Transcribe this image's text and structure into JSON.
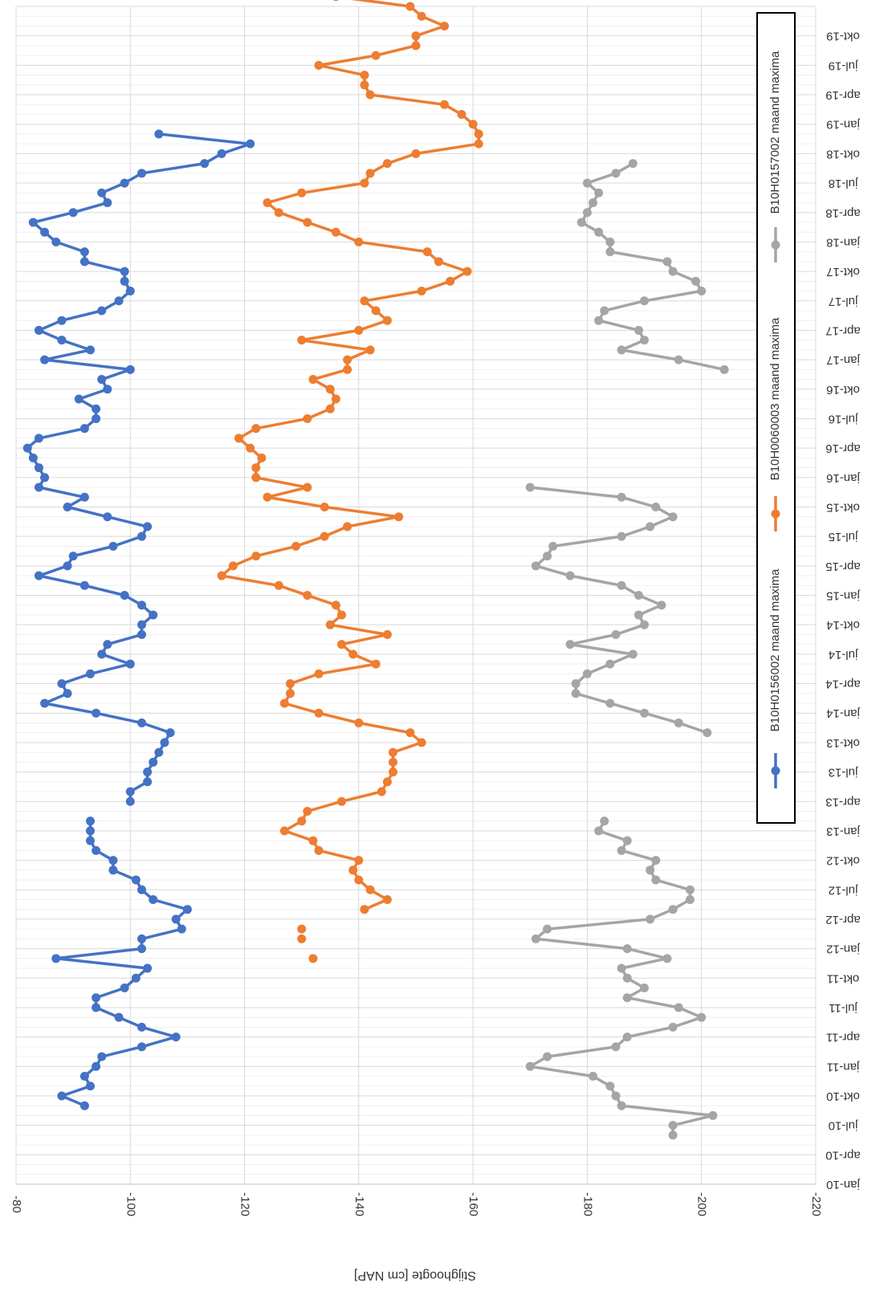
{
  "chart_data": {
    "type": "line",
    "title": "",
    "xlabel": "",
    "ylabel": "Stijghoogte [cm NAP]",
    "y_ticks": [
      -80,
      -100,
      -120,
      -140,
      -160,
      -180,
      -200,
      -220
    ],
    "ylim": [
      -80,
      -220
    ],
    "x_tick_labels": [
      "jan-10",
      "apr-10",
      "jul-10",
      "okt-10",
      "jan-11",
      "apr-11",
      "jul-11",
      "okt-11",
      "jan-12",
      "apr-12",
      "jul-12",
      "okt-12",
      "jan-13",
      "apr-13",
      "jul-13",
      "okt-13",
      "jan-14",
      "apr-14",
      "jul-14",
      "okt-14",
      "jan-15",
      "apr-15",
      "jul-15",
      "okt-15",
      "jan-16",
      "apr-16",
      "jul-16",
      "okt-16",
      "jan-17",
      "apr-17",
      "jul-17",
      "okt-17",
      "jan-18",
      "apr-18",
      "jul-18",
      "okt-18",
      "jan-19",
      "apr-19",
      "jul-19",
      "okt-19"
    ],
    "x_unit": "month index from jan-10",
    "grid": true,
    "legend_position": "right",
    "orientation": "rotated 90 degrees clockwise",
    "series": [
      {
        "name": "B10H0156002 maand maxima",
        "color": "#4472C4",
        "points": [
          [
            8,
            -92
          ],
          [
            9,
            -88
          ],
          [
            10,
            -93
          ],
          [
            11,
            -92
          ],
          [
            12,
            -94
          ],
          [
            13,
            -95
          ],
          [
            14,
            -102
          ],
          [
            15,
            -108
          ],
          [
            16,
            -102
          ],
          [
            17,
            -98
          ],
          [
            18,
            -94
          ],
          [
            19,
            -94
          ],
          [
            20,
            -99
          ],
          [
            21,
            -101
          ],
          [
            22,
            -103
          ],
          [
            23,
            -87
          ],
          [
            24,
            -102
          ],
          [
            25,
            -102
          ],
          [
            26,
            -109
          ],
          [
            27,
            -108
          ],
          [
            28,
            -110
          ],
          [
            29,
            -104
          ],
          [
            30,
            -102
          ],
          [
            31,
            -101
          ],
          [
            32,
            -97
          ],
          [
            33,
            -97
          ],
          [
            34,
            -94
          ],
          [
            35,
            -93
          ],
          [
            36,
            -93
          ],
          [
            37,
            -93
          ],
          [
            39,
            -100
          ],
          [
            40,
            -100
          ],
          [
            41,
            -103
          ],
          [
            42,
            -103
          ],
          [
            43,
            -104
          ],
          [
            44,
            -105
          ],
          [
            45,
            -106
          ],
          [
            46,
            -107
          ],
          [
            47,
            -102
          ],
          [
            48,
            -94
          ],
          [
            49,
            -85
          ],
          [
            50,
            -89
          ],
          [
            51,
            -88
          ],
          [
            52,
            -93
          ],
          [
            53,
            -100
          ],
          [
            54,
            -95
          ],
          [
            55,
            -96
          ],
          [
            56,
            -102
          ],
          [
            57,
            -102
          ],
          [
            58,
            -104
          ],
          [
            59,
            -102
          ],
          [
            60,
            -99
          ],
          [
            61,
            -92
          ],
          [
            62,
            -84
          ],
          [
            63,
            -89
          ],
          [
            64,
            -90
          ],
          [
            65,
            -97
          ],
          [
            66,
            -102
          ],
          [
            67,
            -103
          ],
          [
            68,
            -96
          ],
          [
            69,
            -89
          ],
          [
            70,
            -92
          ],
          [
            71,
            -84
          ],
          [
            72,
            -85
          ],
          [
            73,
            -84
          ],
          [
            74,
            -83
          ],
          [
            75,
            -82
          ],
          [
            76,
            -84
          ],
          [
            77,
            -92
          ],
          [
            78,
            -94
          ],
          [
            79,
            -94
          ],
          [
            80,
            -91
          ],
          [
            81,
            -96
          ],
          [
            82,
            -95
          ],
          [
            83,
            -100
          ],
          [
            84,
            -85
          ],
          [
            85,
            -93
          ],
          [
            86,
            -88
          ],
          [
            87,
            -84
          ],
          [
            88,
            -88
          ],
          [
            89,
            -95
          ],
          [
            90,
            -98
          ],
          [
            91,
            -100
          ],
          [
            92,
            -99
          ],
          [
            93,
            -99
          ],
          [
            94,
            -92
          ],
          [
            95,
            -92
          ],
          [
            96,
            -87
          ],
          [
            97,
            -85
          ],
          [
            98,
            -83
          ],
          [
            99,
            -90
          ],
          [
            100,
            -96
          ],
          [
            101,
            -95
          ],
          [
            102,
            -99
          ],
          [
            103,
            -102
          ],
          [
            104,
            -113
          ],
          [
            105,
            -116
          ],
          [
            106,
            -121
          ],
          [
            107,
            -105
          ]
        ]
      },
      {
        "name": "B10H0060003 maand maxima",
        "color": "#ED7D31",
        "points": [
          [
            28,
            -141
          ],
          [
            29,
            -145
          ],
          [
            30,
            -142
          ],
          [
            31,
            -140
          ],
          [
            32,
            -139
          ],
          [
            33,
            -140
          ],
          [
            34,
            -133
          ],
          [
            35,
            -132
          ],
          [
            36,
            -127
          ],
          [
            37,
            -130
          ],
          [
            38,
            -131
          ],
          [
            39,
            -137
          ],
          [
            40,
            -144
          ],
          [
            41,
            -145
          ],
          [
            42,
            -146
          ],
          [
            43,
            -146
          ],
          [
            44,
            -146
          ],
          [
            45,
            -151
          ],
          [
            46,
            -149
          ],
          [
            47,
            -140
          ],
          [
            48,
            -133
          ],
          [
            49,
            -127
          ],
          [
            50,
            -128
          ],
          [
            51,
            -128
          ],
          [
            52,
            -133
          ],
          [
            53,
            -143
          ],
          [
            54,
            -139
          ],
          [
            55,
            -137
          ],
          [
            56,
            -145
          ],
          [
            57,
            -135
          ],
          [
            58,
            -137
          ],
          [
            59,
            -136
          ],
          [
            60,
            -131
          ],
          [
            61,
            -126
          ],
          [
            62,
            -116
          ],
          [
            63,
            -118
          ],
          [
            64,
            -122
          ],
          [
            65,
            -129
          ],
          [
            66,
            -134
          ],
          [
            67,
            -138
          ],
          [
            68,
            -147
          ],
          [
            69,
            -134
          ],
          [
            70,
            -124
          ],
          [
            71,
            -131
          ],
          [
            72,
            -122
          ],
          [
            73,
            -122
          ],
          [
            74,
            -123
          ],
          [
            75,
            -121
          ],
          [
            76,
            -119
          ],
          [
            77,
            -122
          ],
          [
            78,
            -131
          ],
          [
            79,
            -135
          ],
          [
            80,
            -136
          ],
          [
            81,
            -135
          ],
          [
            82,
            -132
          ],
          [
            83,
            -138
          ],
          [
            84,
            -138
          ],
          [
            85,
            -142
          ],
          [
            86,
            -130
          ],
          [
            87,
            -140
          ],
          [
            88,
            -145
          ],
          [
            89,
            -143
          ],
          [
            90,
            -141
          ],
          [
            91,
            -151
          ],
          [
            92,
            -156
          ],
          [
            93,
            -159
          ],
          [
            94,
            -154
          ],
          [
            95,
            -152
          ],
          [
            96,
            -140
          ],
          [
            97,
            -136
          ],
          [
            98,
            -131
          ],
          [
            99,
            -126
          ],
          [
            100,
            -124
          ],
          [
            101,
            -130
          ],
          [
            102,
            -141
          ],
          [
            103,
            -142
          ],
          [
            104,
            -145
          ],
          [
            105,
            -150
          ],
          [
            106,
            -161
          ],
          [
            107,
            -161
          ],
          [
            108,
            -160
          ],
          [
            109,
            -158
          ],
          [
            110,
            -155
          ],
          [
            111,
            -142
          ],
          [
            112,
            -141
          ],
          [
            113,
            -141
          ],
          [
            114,
            -133
          ],
          [
            115,
            -143
          ],
          [
            116,
            -150
          ],
          [
            117,
            -150
          ],
          [
            118,
            -155
          ],
          [
            119,
            -151
          ],
          [
            120,
            -149
          ],
          [
            121,
            -136
          ],
          [
            122,
            -136
          ],
          [
            123,
            -135
          ]
        ],
        "isolated_points": [
          [
            23,
            -132
          ],
          [
            25,
            -130
          ],
          [
            26,
            -130
          ]
        ]
      },
      {
        "name": "B10H0157002 maand maxima",
        "color": "#A5A5A5",
        "points": [
          [
            5,
            -195
          ],
          [
            6,
            -195
          ],
          [
            7,
            -202
          ],
          [
            8,
            -186
          ],
          [
            9,
            -185
          ],
          [
            10,
            -184
          ],
          [
            11,
            -181
          ],
          [
            12,
            -170
          ],
          [
            13,
            -173
          ],
          [
            14,
            -185
          ],
          [
            15,
            -187
          ],
          [
            16,
            -195
          ],
          [
            17,
            -200
          ],
          [
            18,
            -196
          ],
          [
            19,
            -187
          ],
          [
            20,
            -190
          ],
          [
            21,
            -187
          ],
          [
            22,
            -186
          ],
          [
            23,
            -194
          ],
          [
            24,
            -187
          ],
          [
            25,
            -171
          ],
          [
            26,
            -173
          ],
          [
            27,
            -191
          ],
          [
            28,
            -195
          ],
          [
            29,
            -198
          ],
          [
            30,
            -198
          ],
          [
            31,
            -192
          ],
          [
            32,
            -191
          ],
          [
            33,
            -192
          ],
          [
            34,
            -186
          ],
          [
            35,
            -187
          ],
          [
            36,
            -182
          ],
          [
            37,
            -183
          ],
          [
            46,
            -201
          ],
          [
            47,
            -196
          ],
          [
            48,
            -190
          ],
          [
            49,
            -184
          ],
          [
            50,
            -178
          ],
          [
            51,
            -178
          ],
          [
            52,
            -180
          ],
          [
            53,
            -184
          ],
          [
            54,
            -188
          ],
          [
            55,
            -177
          ],
          [
            56,
            -185
          ],
          [
            57,
            -190
          ],
          [
            58,
            -189
          ],
          [
            59,
            -193
          ],
          [
            60,
            -189
          ],
          [
            61,
            -186
          ],
          [
            62,
            -177
          ],
          [
            63,
            -171
          ],
          [
            64,
            -173
          ],
          [
            65,
            -174
          ],
          [
            66,
            -186
          ],
          [
            67,
            -191
          ],
          [
            68,
            -195
          ],
          [
            69,
            -192
          ],
          [
            70,
            -186
          ],
          [
            71,
            -170
          ],
          [
            83,
            -204
          ],
          [
            84,
            -196
          ],
          [
            85,
            -186
          ],
          [
            86,
            -190
          ],
          [
            87,
            -189
          ],
          [
            88,
            -182
          ],
          [
            89,
            -183
          ],
          [
            90,
            -190
          ],
          [
            91,
            -200
          ],
          [
            92,
            -199
          ],
          [
            93,
            -195
          ],
          [
            94,
            -194
          ],
          [
            95,
            -184
          ],
          [
            96,
            -184
          ],
          [
            97,
            -182
          ],
          [
            98,
            -179
          ],
          [
            99,
            -180
          ],
          [
            100,
            -181
          ],
          [
            101,
            -182
          ],
          [
            102,
            -180
          ],
          [
            103,
            -185
          ],
          [
            104,
            -188
          ]
        ]
      }
    ]
  }
}
